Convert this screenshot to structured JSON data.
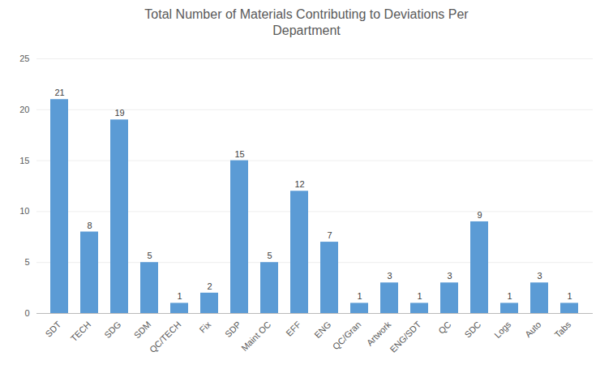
{
  "chart_data": {
    "type": "bar",
    "title": "Total Number of Materials Contributing to Deviations Per\nDepartment",
    "categories": [
      "SDT",
      "TECH",
      "SDG",
      "SDM",
      "QC/TECH",
      "Fix",
      "SDP",
      "Maint OC",
      "EFF",
      "ENG",
      "QC/Gran",
      "Artwork",
      "ENG/SDT",
      "QC",
      "SDC",
      "Logs",
      "Auto",
      "Tabs"
    ],
    "values": [
      21,
      8,
      19,
      5,
      1,
      2,
      15,
      5,
      12,
      7,
      1,
      3,
      1,
      3,
      9,
      1,
      3,
      1
    ],
    "color": "#5B9BD5",
    "ylim": [
      0,
      25
    ],
    "yticks": [
      0,
      5,
      10,
      15,
      20,
      25
    ],
    "grid": true,
    "data_labels": true
  }
}
